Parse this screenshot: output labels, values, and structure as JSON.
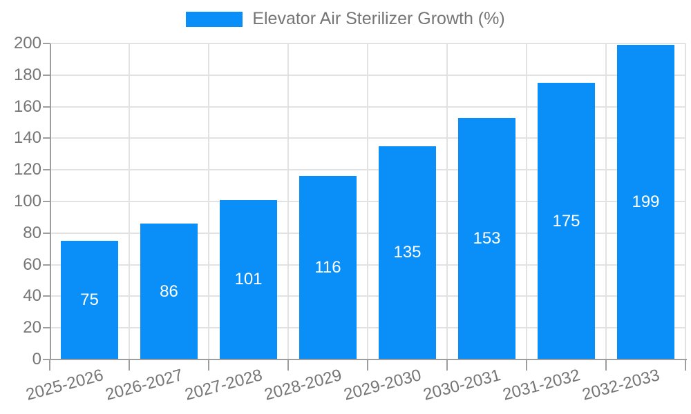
{
  "chart_data": {
    "type": "bar",
    "title": "Elevator Air Sterilizer Growth (%)",
    "categories": [
      "2025-2026",
      "2026-2027",
      "2027-2028",
      "2028-2029",
      "2029-2030",
      "2030-2031",
      "2031-2032",
      "2032-2033"
    ],
    "series": [
      {
        "name": "Elevator Air Sterilizer Growth (%)",
        "values": [
          75,
          86,
          101,
          116,
          135,
          153,
          175,
          199
        ],
        "color": "#0a8ff9"
      }
    ],
    "xlabel": "",
    "ylabel": "",
    "ylim": [
      0,
      200
    ],
    "ytick_step": 20,
    "ytick_labels": [
      "0",
      "20",
      "40",
      "60",
      "80",
      "100",
      "120",
      "140",
      "160",
      "180",
      "200"
    ],
    "grid": true,
    "legend_position": "top-center",
    "value_labels": "inside-center",
    "x_label_rotation_deg": -15
  },
  "legend": {
    "label": "Elevator Air Sterilizer Growth (%)"
  },
  "colors": {
    "bar": "#0a8ff9",
    "axis": "#9e9e9e",
    "gridline": "#e2e2e2",
    "tick_text": "#757575",
    "legend_text": "#757575",
    "value_text": "#ffffff",
    "background": "#ffffff"
  }
}
